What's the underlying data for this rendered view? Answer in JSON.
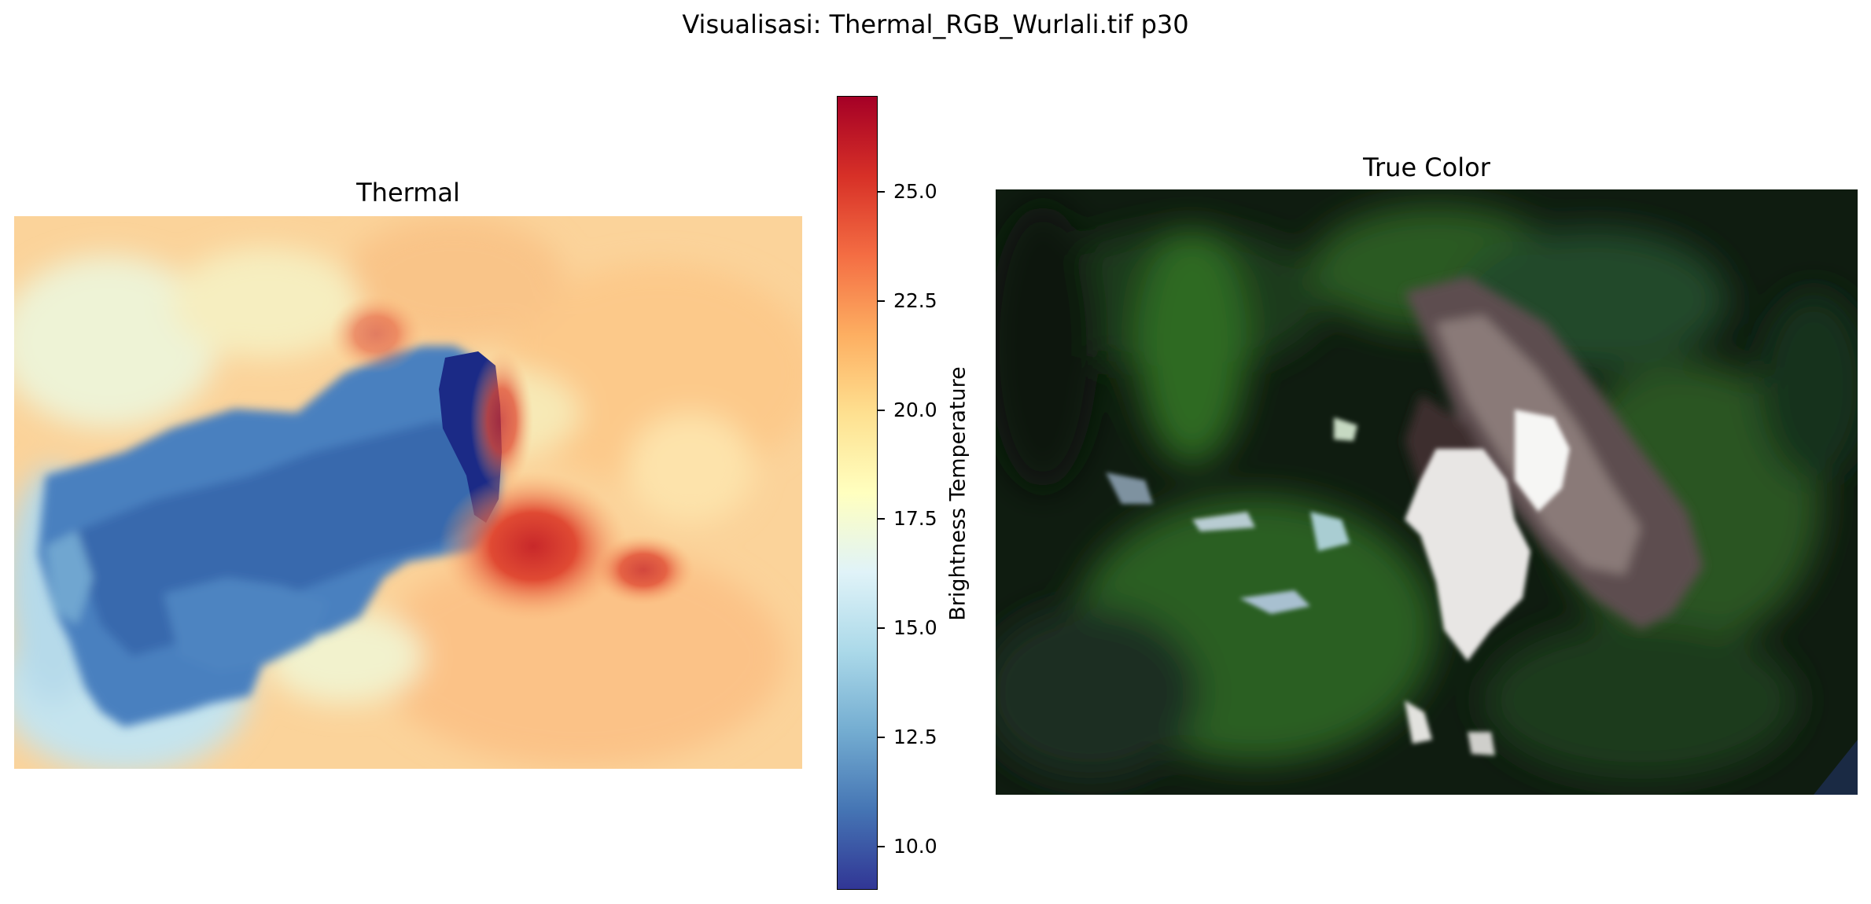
{
  "title": "Visualisasi: Thermal_RGB_Wurlali.tif p30",
  "chart_data": [
    {
      "type": "heatmap",
      "title": "Thermal",
      "axes_visible": false,
      "colormap": "RdYlBu_r",
      "colormap_stops": [
        "#313695",
        "#4575b4",
        "#74add1",
        "#abd9e9",
        "#e0f3f8",
        "#ffffbf",
        "#fee090",
        "#fdae61",
        "#f46d43",
        "#d73027",
        "#a50026"
      ],
      "vmin": 9.0,
      "vmax": 27.2,
      "summary_regions": [
        {
          "region": "cold core (center)",
          "value": 9.5
        },
        {
          "region": "cold plume (west-center)",
          "value": 12.0
        },
        {
          "region": "warm hotspot (center-east)",
          "value": 26.5
        },
        {
          "region": "background",
          "value": 22.0
        }
      ]
    },
    {
      "type": "heatmap",
      "title": "True Color",
      "axes_visible": false,
      "rendering": "RGB composite",
      "dominant_colors": [
        "#0d1a0d",
        "#2f6a24",
        "#8a7a78",
        "#f2f2f2"
      ]
    }
  ],
  "colorbar": {
    "label": "Brightness Temperature",
    "min": 9.0,
    "max": 27.2,
    "ticks": [
      "10.0",
      "12.5",
      "15.0",
      "17.5",
      "20.0",
      "22.5",
      "25.0"
    ]
  }
}
